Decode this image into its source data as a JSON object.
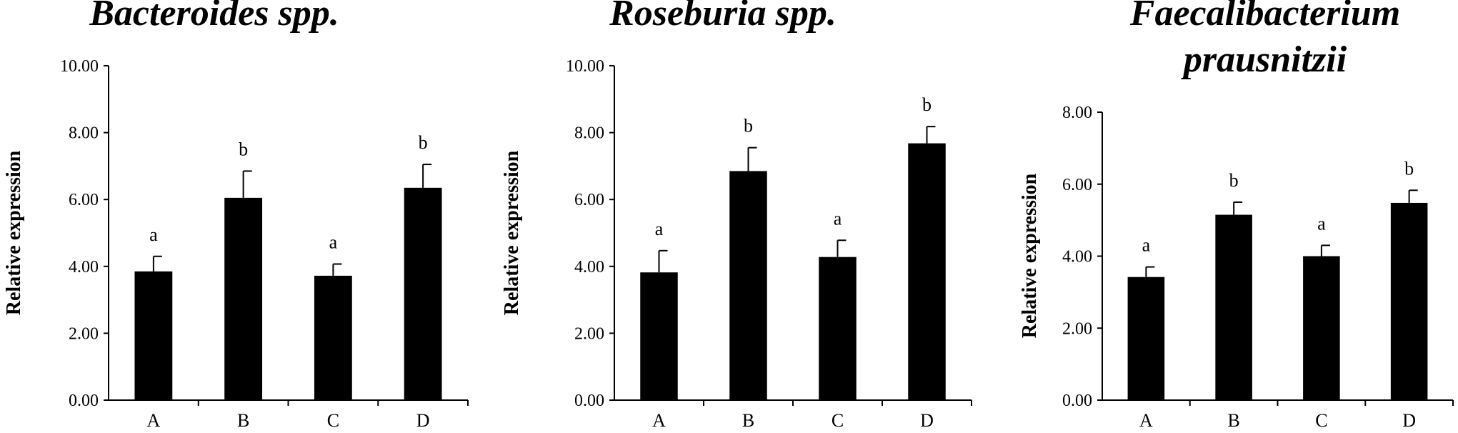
{
  "chart_data": [
    {
      "type": "bar",
      "title": [
        "Bacteroides spp."
      ],
      "xlabel": "",
      "ylabel": "Relative expression",
      "ylim": [
        0,
        10
      ],
      "yticks": [
        "0.00",
        "2.00",
        "4.00",
        "6.00",
        "8.00",
        "10.00"
      ],
      "categories": [
        "A",
        "B",
        "C",
        "D"
      ],
      "values": [
        3.85,
        6.05,
        3.72,
        6.35
      ],
      "errors": [
        0.45,
        0.8,
        0.35,
        0.7
      ],
      "significance": [
        "a",
        "b",
        "a",
        "b"
      ],
      "grid": false,
      "bar_color": "#000000"
    },
    {
      "type": "bar",
      "title": [
        "Roseburia spp."
      ],
      "xlabel": "",
      "ylabel": "Relative expression",
      "ylim": [
        0,
        10
      ],
      "yticks": [
        "0.00",
        "2.00",
        "4.00",
        "6.00",
        "8.00",
        "10.00"
      ],
      "categories": [
        "A",
        "B",
        "C",
        "D"
      ],
      "values": [
        3.82,
        6.85,
        4.28,
        7.68
      ],
      "errors": [
        0.65,
        0.7,
        0.5,
        0.5
      ],
      "significance": [
        "a",
        "b",
        "a",
        "b"
      ],
      "grid": false,
      "bar_color": "#000000"
    },
    {
      "type": "bar",
      "title": [
        "Faecalibacterium",
        "prausnitzii"
      ],
      "xlabel": "",
      "ylabel": "Relative expression",
      "ylim": [
        0,
        8
      ],
      "yticks": [
        "0.00",
        "2.00",
        "4.00",
        "6.00",
        "8.00"
      ],
      "categories": [
        "A",
        "B",
        "C",
        "D"
      ],
      "values": [
        3.42,
        5.15,
        4.0,
        5.48
      ],
      "errors": [
        0.28,
        0.35,
        0.3,
        0.35
      ],
      "significance": [
        "a",
        "b",
        "a",
        "b"
      ],
      "grid": false,
      "bar_color": "#000000"
    }
  ]
}
